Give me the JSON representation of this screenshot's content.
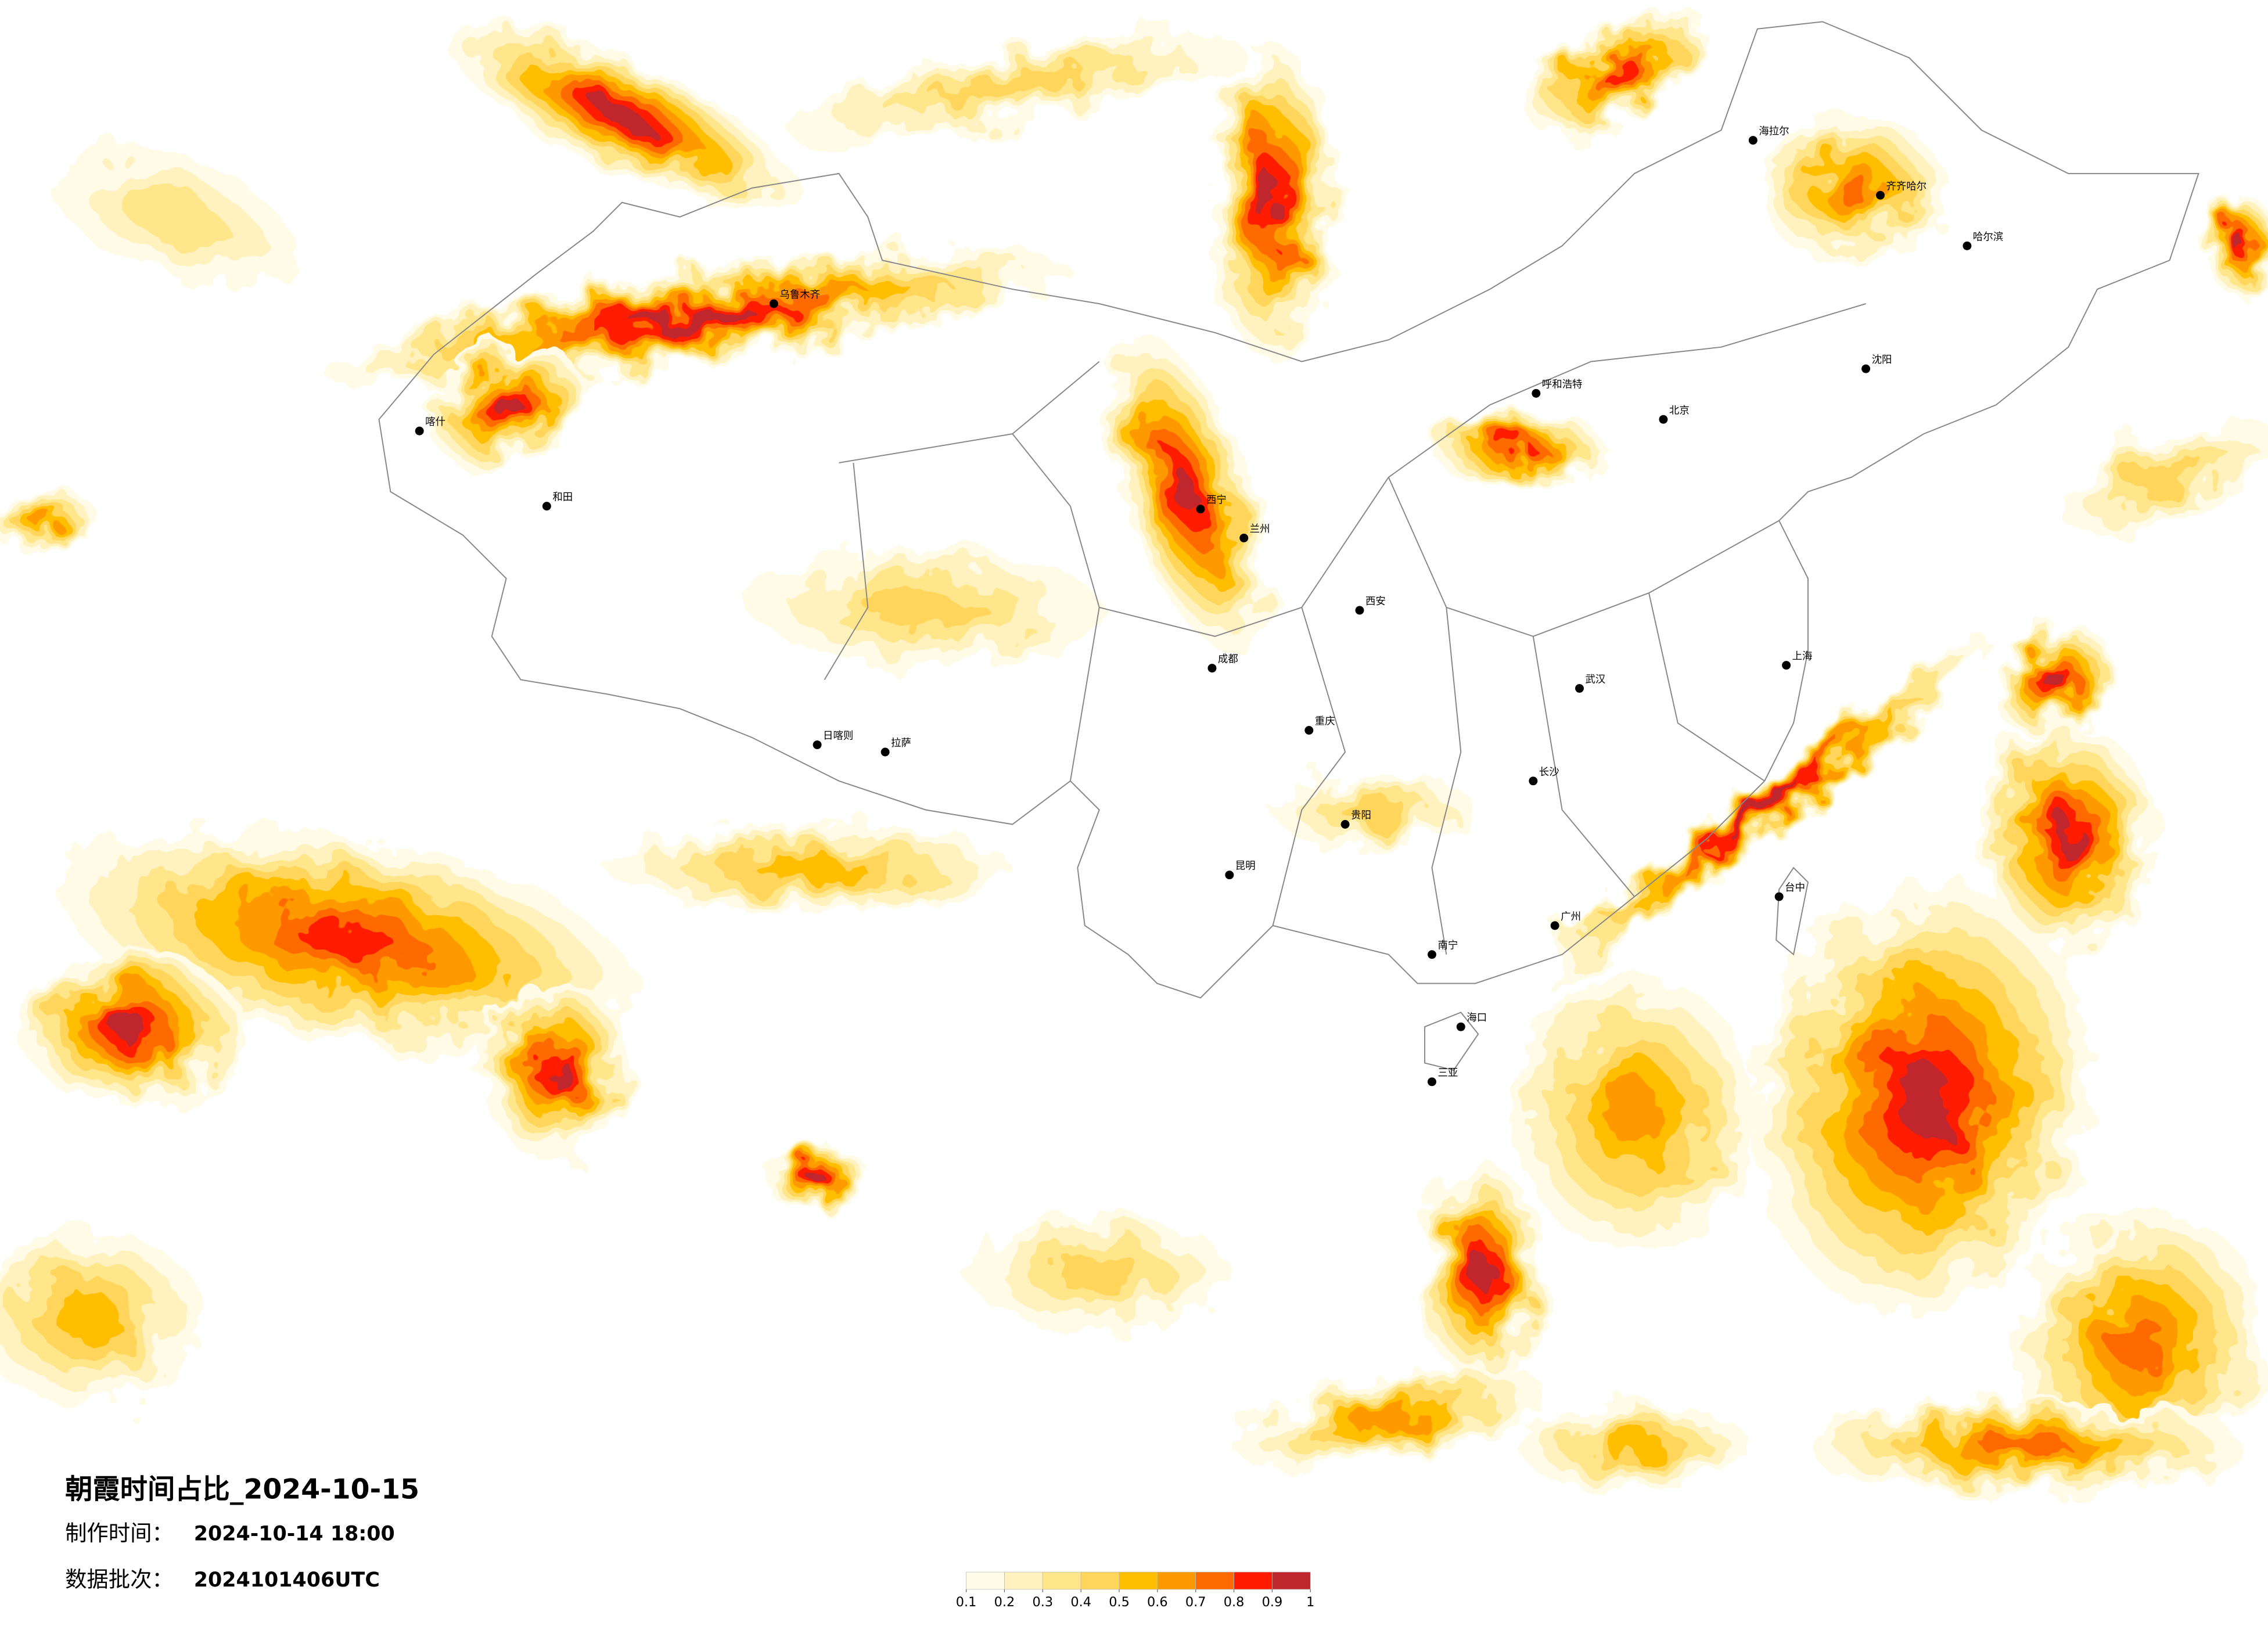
{
  "title": "朝霞时间占比_2024-10-15",
  "info": [
    {
      "label": "制作时间：",
      "value": "2024-10-14 18:00"
    },
    {
      "label": "数据批次：",
      "value": "2024101406UTC"
    }
  ],
  "legend": {
    "ticks": [
      0.1,
      0.2,
      0.3,
      0.4,
      0.5,
      0.6,
      0.7,
      0.8,
      0.9,
      1
    ],
    "colors": [
      "#fffbe6",
      "#fff2bf",
      "#ffe68a",
      "#ffd55c",
      "#ffbf00",
      "#ff9900",
      "#ff6a00",
      "#ff1a00",
      "#c0272d"
    ]
  },
  "cities": [
    "北京",
    "上海",
    "广州",
    "成都",
    "西宁",
    "兰州",
    "拉萨",
    "日喀则",
    "和田",
    "喀什",
    "乌鲁木齐",
    "哈尔滨",
    "齐齐哈尔",
    "海拉尔",
    "呼和浩特",
    "昆明",
    "台中",
    "海口",
    "三亚",
    "沈阳",
    "西安",
    "武汉",
    "长沙",
    "南宁",
    "重庆",
    "贵阳"
  ]
}
